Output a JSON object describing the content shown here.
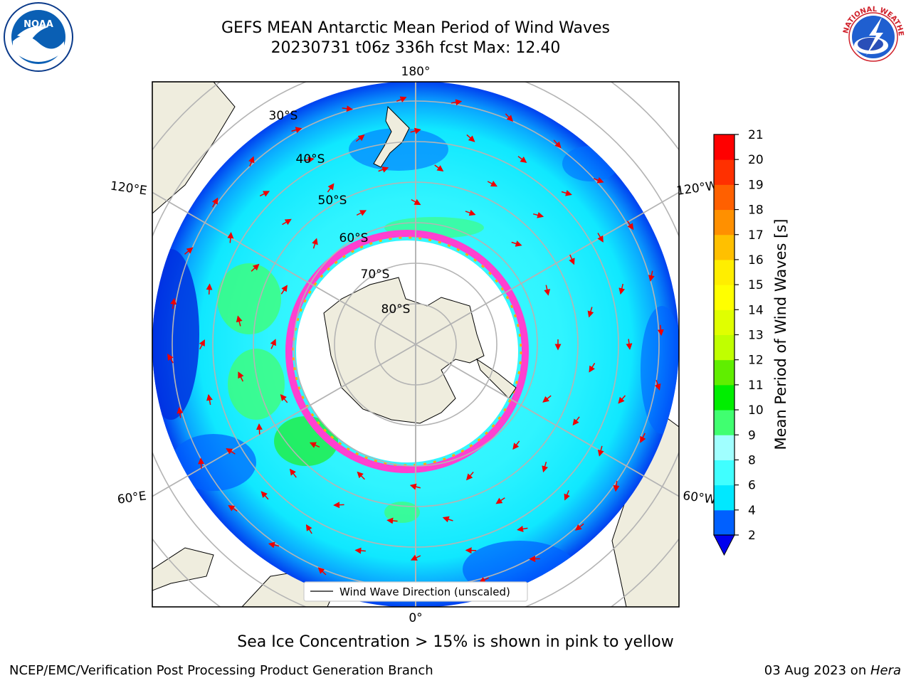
{
  "title_line1": "GEFS MEAN Antarctic Mean Period of Wind Waves",
  "title_line2": "20230731 t06z 336h fcst   Max: 12.40",
  "logos": {
    "left": "noaa-logo",
    "right": "national-weather-service-logo",
    "left_text": "NOAA",
    "right_text": "NATIONAL WEATHER SERVICE"
  },
  "map": {
    "projection": "south-polar-stereographic",
    "longitude_labels": [
      "180°",
      "120°E",
      "120°W",
      "60°E",
      "60°W",
      "0°"
    ],
    "latitude_labels": [
      "30°S",
      "40°S",
      "50°S",
      "60°S",
      "70°S",
      "80°S"
    ],
    "legend": "Wind Wave Direction (unscaled)"
  },
  "colorbar": {
    "label": "Mean Period of Wind Waves [s]",
    "ticks": [
      "2",
      "4",
      "6",
      "8",
      "9",
      "10",
      "11",
      "12",
      "13",
      "14",
      "15",
      "16",
      "17",
      "18",
      "19",
      "20",
      "21"
    ],
    "colors": [
      "#0060ff",
      "#00e8ff",
      "#40ffff",
      "#a0ffff",
      "#40ff70",
      "#00ee00",
      "#60ee00",
      "#c0ff00",
      "#e0ff00",
      "#ffff00",
      "#ffee00",
      "#ffc000",
      "#ff9000",
      "#ff6000",
      "#ff3000",
      "#ff0000"
    ],
    "under_color": "#0000ee"
  },
  "caption": "Sea Ice Concentration > 15% is shown in pink to yellow",
  "footer_left": "NCEP/EMC/Verification Post Processing Product Generation Branch",
  "footer_right_date": "03 Aug 2023 on ",
  "footer_right_host": "Hera"
}
